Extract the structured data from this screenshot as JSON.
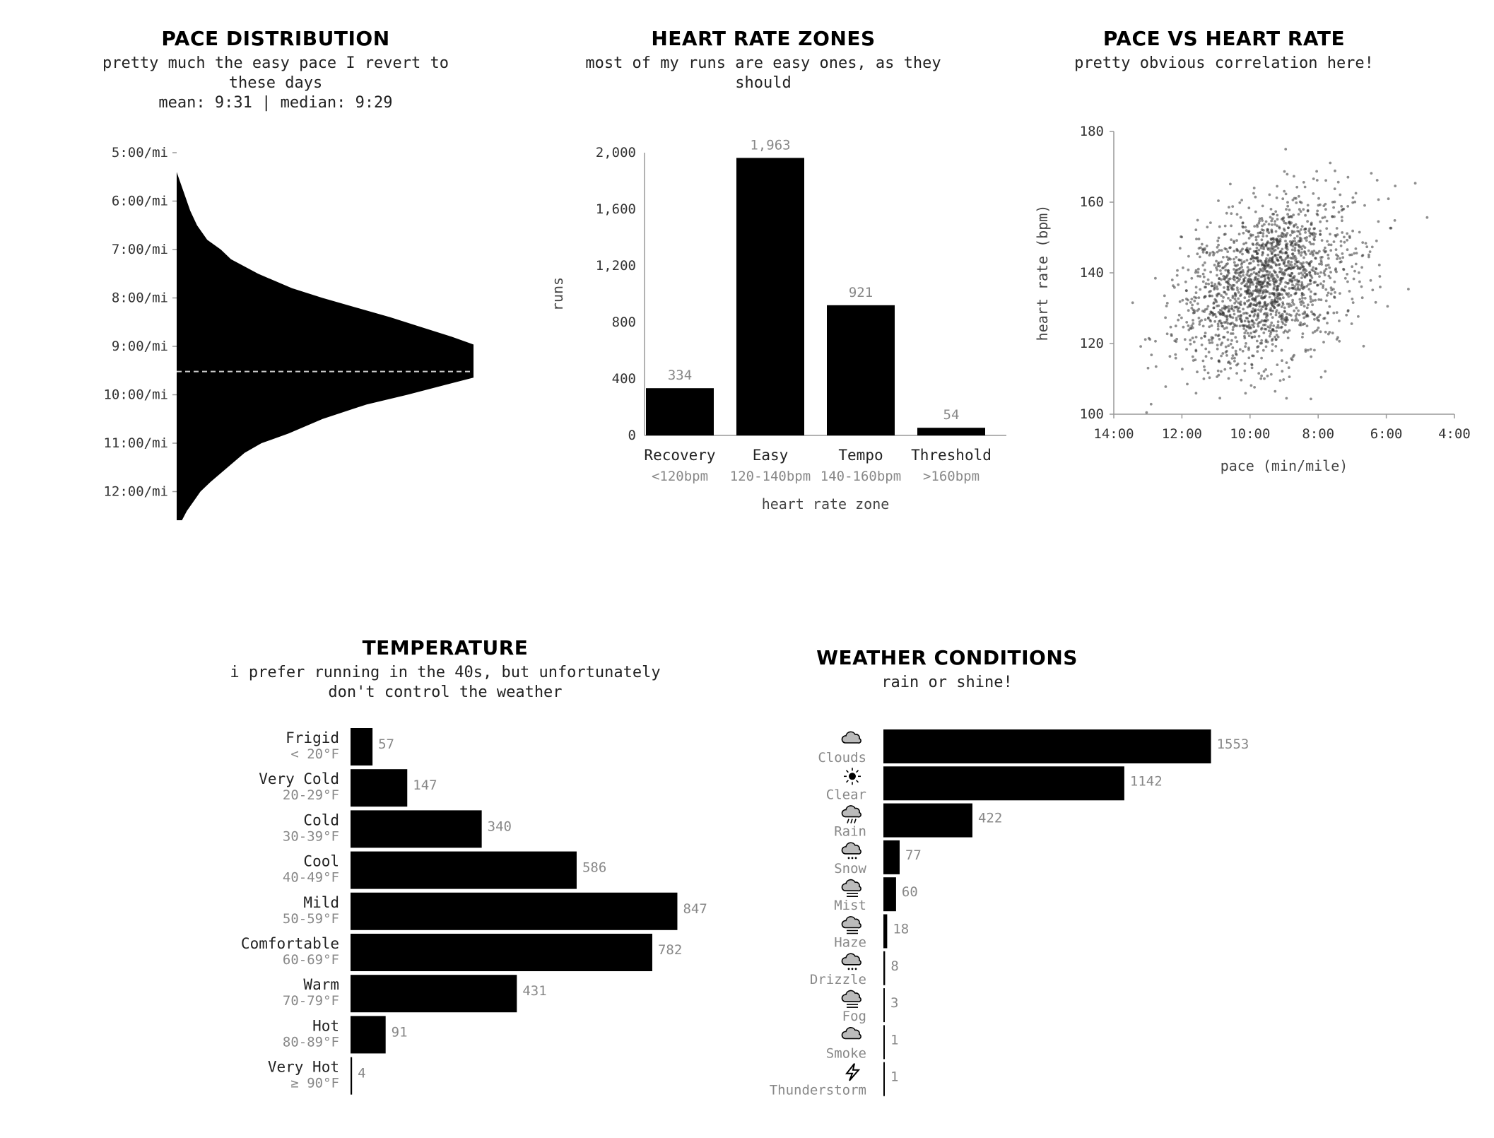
{
  "pace": {
    "title": "PACE DISTRIBUTION",
    "subtitle": "pretty much the easy pace I revert to\nthese days",
    "stats": "mean: 9:31 | median: 9:29"
  },
  "hr": {
    "title": "HEART RATE ZONES",
    "subtitle": "most of my runs are easy ones, as they\nshould"
  },
  "scatter": {
    "title": "PACE VS HEART RATE",
    "subtitle": "pretty obvious correlation here!"
  },
  "temp": {
    "title": "TEMPERATURE",
    "subtitle": "i prefer running in the 40s, but unfortunately\ndon't control the weather"
  },
  "weather": {
    "title": "WEATHER CONDITIONS",
    "subtitle": "rain or shine!"
  },
  "colors": {
    "bar": "#000000",
    "value": "#888888",
    "axis": "#999999",
    "median_line": "#cccccc"
  },
  "chart_data": [
    {
      "id": "pace",
      "type": "area",
      "ticks": [
        "5:00/mi",
        "6:00/mi",
        "7:00/mi",
        "8:00/mi",
        "9:00/mi",
        "10:00/mi",
        "11:00/mi",
        "12:00/mi"
      ],
      "tick_minutes": [
        5,
        6,
        7,
        8,
        9,
        10,
        11,
        12
      ],
      "ylim_minutes": [
        5,
        13
      ],
      "range_minutes": [
        5.4,
        12.95
      ],
      "mean_minutes": 9.52,
      "peak_minutes": 9.4,
      "density": {
        "minutes": [
          5.4,
          5.6,
          5.8,
          6.0,
          6.2,
          6.5,
          6.8,
          7.0,
          7.2,
          7.5,
          7.8,
          8.0,
          8.2,
          8.4,
          8.6,
          8.8,
          9.0,
          9.2,
          9.3,
          9.4,
          9.5,
          9.6,
          9.8,
          10.0,
          10.2,
          10.5,
          10.8,
          11.0,
          11.2,
          11.5,
          11.8,
          12.0,
          12.2,
          12.4,
          12.6,
          12.8,
          12.95
        ],
        "relative": [
          0.0,
          0.01,
          0.02,
          0.03,
          0.04,
          0.06,
          0.09,
          0.13,
          0.16,
          0.24,
          0.34,
          0.43,
          0.53,
          0.63,
          0.72,
          0.81,
          0.89,
          0.96,
          0.99,
          1.0,
          0.96,
          0.9,
          0.79,
          0.68,
          0.56,
          0.43,
          0.33,
          0.25,
          0.2,
          0.15,
          0.1,
          0.07,
          0.05,
          0.03,
          0.015,
          0.005,
          0.0
        ]
      }
    },
    {
      "id": "hr",
      "type": "bar",
      "categories": [
        "Recovery",
        "Easy",
        "Tempo",
        "Threshold"
      ],
      "sublabels": [
        "<120bpm",
        "120-140bpm",
        "140-160bpm",
        ">160bpm"
      ],
      "values": [
        334,
        1963,
        921,
        54
      ],
      "value_labels": [
        "334",
        "1,963",
        "921",
        "54"
      ],
      "yticks": [
        "0",
        "400",
        "800",
        "1,200",
        "1,600",
        "2,000"
      ],
      "ytick_values": [
        0,
        400,
        800,
        1200,
        1600,
        2000
      ],
      "ylim": [
        0,
        2000
      ],
      "xlabel": "heart rate zone",
      "ylabel": "runs"
    },
    {
      "id": "scatter",
      "type": "scatter",
      "xlabel": "pace (min/mile)",
      "ylabel": "heart rate (bpm)",
      "xticks": [
        "14:00",
        "12:00",
        "10:00",
        "8:00",
        "6:00",
        "4:00"
      ],
      "xtick_minutes": [
        14,
        12,
        10,
        8,
        6,
        4
      ],
      "xlim_minutes": [
        14,
        4
      ],
      "yticks": [
        "100",
        "120",
        "140",
        "160",
        "180"
      ],
      "ytick_values": [
        100,
        120,
        140,
        160,
        180
      ],
      "ylim": [
        100,
        180
      ],
      "n_points": 3270,
      "center": {
        "pace_minutes": 9.5,
        "hr_bpm": 137
      },
      "spread": {
        "pace_minutes": 1.25,
        "hr_bpm": 11
      }
    },
    {
      "id": "temp",
      "type": "bar",
      "orientation": "horizontal",
      "categories": [
        "Frigid",
        "Very Cold",
        "Cold",
        "Cool",
        "Mild",
        "Comfortable",
        "Warm",
        "Hot",
        "Very Hot"
      ],
      "sublabels": [
        "< 20°F",
        "20-29°F",
        "30-39°F",
        "40-49°F",
        "50-59°F",
        "60-69°F",
        "70-79°F",
        "80-89°F",
        "≥ 90°F"
      ],
      "values": [
        57,
        147,
        340,
        586,
        847,
        782,
        431,
        91,
        4
      ]
    },
    {
      "id": "weather",
      "type": "bar",
      "orientation": "horizontal",
      "categories": [
        "Clouds",
        "Clear",
        "Rain",
        "Snow",
        "Mist",
        "Haze",
        "Drizzle",
        "Fog",
        "Smoke",
        "Thunderstorm"
      ],
      "icons": [
        "cloud-icon",
        "sun-icon",
        "rain-icon",
        "snow-icon",
        "mist-icon",
        "haze-icon",
        "drizzle-icon",
        "fog-icon",
        "smoke-icon",
        "lightning-icon"
      ],
      "values": [
        1553,
        1142,
        422,
        77,
        60,
        18,
        8,
        3,
        1,
        1
      ]
    }
  ]
}
